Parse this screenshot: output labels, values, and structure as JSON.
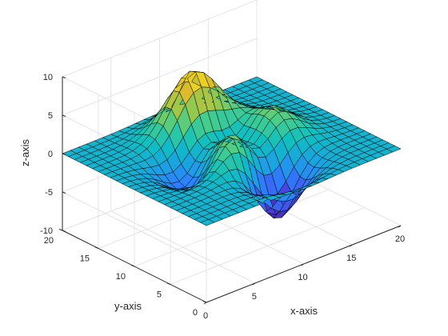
{
  "chart_data": {
    "type": "surface",
    "function": "peaks",
    "grid_points": 25,
    "x": {
      "label": "x-axis",
      "lim": [
        0,
        20
      ],
      "ticks": [
        0,
        5,
        10,
        15,
        20
      ]
    },
    "y": {
      "label": "y-axis",
      "lim": [
        0,
        20
      ],
      "ticks": [
        0,
        5,
        10,
        15,
        20
      ]
    },
    "z": {
      "label": "z-axis",
      "lim": [
        -10,
        10
      ],
      "ticks": [
        -10,
        -5,
        0,
        5,
        10
      ]
    },
    "colormap": [
      "#3e26a8",
      "#4a42df",
      "#2e7dff",
      "#1aa4e0",
      "#0fc0c0",
      "#47cd8c",
      "#96c94c",
      "#dcbc2e",
      "#f9ec16"
    ],
    "edge_color": "#000000",
    "box_color": "#262626",
    "grid": true
  }
}
